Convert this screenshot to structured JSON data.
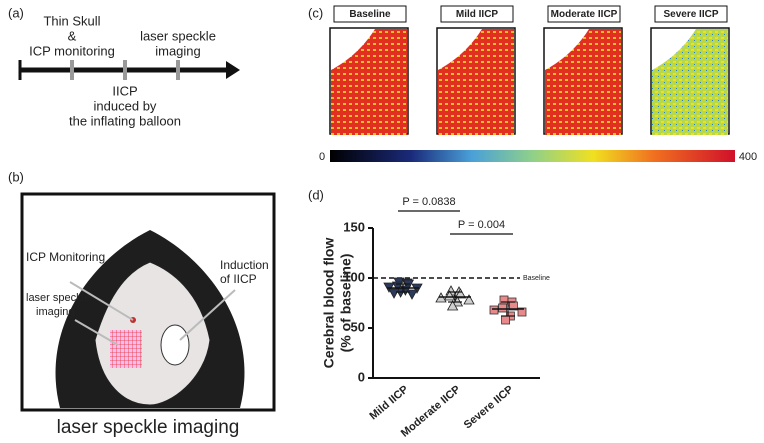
{
  "panel_a": {
    "label": "(a)",
    "timeline": [
      {
        "lines": [
          "Thin Skull",
          "&",
          "ICP monitoring"
        ]
      },
      {
        "lines": [
          "IICP",
          "induced by",
          "the inflating balloon"
        ]
      },
      {
        "lines": [
          "laser speckle",
          "imaging"
        ]
      }
    ]
  },
  "panel_b": {
    "label": "(b)",
    "left_labels": [
      "ICP Monitoring",
      "laser speckle",
      "imaging"
    ],
    "right_labels": [
      "Induction",
      "of IICP"
    ],
    "caption": "laser speckle imaging"
  },
  "panel_c": {
    "label": "(c)",
    "images": [
      "Baseline",
      "Mild IICP",
      "Moderate IICP",
      "Severe IICP"
    ],
    "colorbar": {
      "min": 0,
      "max": 400
    }
  },
  "chart_data": {
    "type": "scatter",
    "label": "(d)",
    "ylabel": [
      "Cerebral blood flow",
      "(% of baseline)"
    ],
    "categories": [
      "Mild IICP",
      "Moderate IICP",
      "Severe IICP"
    ],
    "series": [
      {
        "name": "Mild IICP",
        "color": "#2b3a5c",
        "marker": "triangle-down",
        "values": [
          96,
          95,
          94,
          92,
          91,
          90,
          88,
          86,
          85,
          84
        ],
        "mean": 90,
        "sd": 4
      },
      {
        "name": "Moderate IICP",
        "color": "#cfcfcf",
        "marker": "triangle-up",
        "values": [
          87,
          86,
          84,
          82,
          80,
          78,
          76,
          72
        ],
        "mean": 81,
        "sd": 5
      },
      {
        "name": "Severe IICP",
        "color": "#e88a8c",
        "marker": "square",
        "values": [
          78,
          76,
          72,
          70,
          68,
          66,
          62,
          58
        ],
        "mean": 69,
        "sd": 7
      }
    ],
    "ylim": [
      0,
      150
    ],
    "yticks": [
      0,
      50,
      100,
      150
    ],
    "baseline": {
      "value": 100,
      "label": "Baseline"
    },
    "comparisons": [
      {
        "pair": [
          0,
          1
        ],
        "label": "P = 0.0838"
      },
      {
        "pair": [
          1,
          2
        ],
        "label": "P = 0.004"
      }
    ]
  }
}
